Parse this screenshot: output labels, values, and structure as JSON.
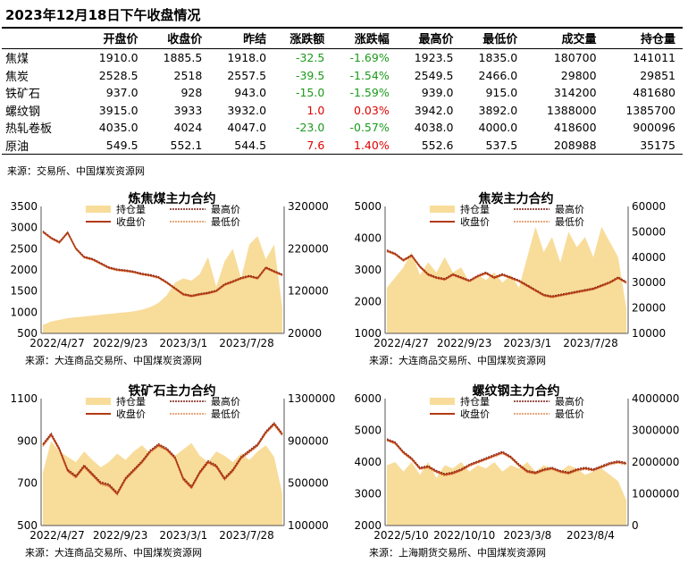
{
  "title": "2023年12月18日下午收盘情况",
  "table": {
    "headers": [
      "",
      "开盘价",
      "收盘价",
      "昨结",
      "涨跌额",
      "涨跌幅",
      "最高价",
      "最低价",
      "成交量",
      "持仓量"
    ],
    "rows": [
      [
        "焦煤",
        "1910.0",
        "1885.5",
        "1918.0",
        "-32.5",
        "-1.69%",
        "1923.5",
        "1835.0",
        "180700",
        "141011"
      ],
      [
        "焦炭",
        "2528.5",
        "2518",
        "2557.5",
        "-39.5",
        "-1.54%",
        "2549.5",
        "2466.0",
        "29800",
        "29851"
      ],
      [
        "铁矿石",
        "937.0",
        "928",
        "943.0",
        "-15.0",
        "-1.59%",
        "939.0",
        "915.0",
        "314200",
        "481680"
      ],
      [
        "螺纹钢",
        "3915.0",
        "3933",
        "3932.0",
        "1.0",
        "0.03%",
        "3942.0",
        "3892.0",
        "1388000",
        "1385700"
      ],
      [
        "热轧卷板",
        "4035.0",
        "4024",
        "4047.0",
        "-23.0",
        "-0.57%",
        "4038.0",
        "4000.0",
        "418600",
        "900096"
      ],
      [
        "原油",
        "549.5",
        "552.1",
        "544.5",
        "7.6",
        "1.40%",
        "552.6",
        "537.5",
        "208988",
        "35175"
      ]
    ]
  },
  "source": "来源：交易所、中国煤炭资源网",
  "colors": {
    "oi_fill": "#f8dc9a",
    "close": "#b33a12",
    "high": "#7a1a10",
    "low": "#e08a50",
    "up": "#e00000",
    "down": "#1a9a1a"
  },
  "chart_data": [
    {
      "type": "line",
      "title": "炼焦煤主力合约",
      "source": "来源：大连商品交易所、中国煤炭资源网",
      "x_ticks": [
        "2022/4/27",
        "2022/9/23",
        "2023/3/1",
        "2023/7/28"
      ],
      "left_ylim": [
        500,
        3500
      ],
      "left_ticks": [
        500,
        1000,
        1500,
        2000,
        2500,
        3000,
        3500
      ],
      "right_ylim": [
        20000,
        320000
      ],
      "right_ticks": [
        20000,
        120000,
        220000,
        320000
      ],
      "legend": [
        "持仓量",
        "收盘价",
        "最高价",
        "最低价"
      ],
      "close": [
        2900,
        2750,
        2650,
        2880,
        2500,
        2300,
        2250,
        2150,
        2050,
        2000,
        1980,
        1950,
        1900,
        1870,
        1820,
        1700,
        1560,
        1420,
        1380,
        1420,
        1450,
        1500,
        1650,
        1720,
        1800,
        1850,
        1800,
        2050,
        1960,
        1880
      ],
      "open_interest": [
        40000,
        48000,
        52000,
        56000,
        58000,
        60000,
        62000,
        64000,
        66000,
        68000,
        70000,
        72000,
        76000,
        82000,
        92000,
        110000,
        140000,
        150000,
        145000,
        160000,
        200000,
        130000,
        190000,
        220000,
        150000,
        230000,
        250000,
        195000,
        230000,
        80000
      ]
    },
    {
      "type": "line",
      "title": "焦炭主力合约",
      "source": "来源：大连商品交易所、中国煤炭资源网",
      "x_ticks": [
        "2022/4/27",
        "2022/9/23",
        "2023/3/1",
        "2023/7/28"
      ],
      "left_ylim": [
        1000,
        5000
      ],
      "left_ticks": [
        1000,
        2000,
        3000,
        4000,
        5000
      ],
      "right_ylim": [
        10000,
        60000
      ],
      "right_ticks": [
        10000,
        20000,
        30000,
        40000,
        50000,
        60000
      ],
      "legend": [
        "持仓量",
        "收盘价",
        "最高价",
        "最低价"
      ],
      "close": [
        3600,
        3500,
        3300,
        3450,
        3100,
        2850,
        2750,
        2700,
        2850,
        2750,
        2650,
        2800,
        2900,
        2750,
        2850,
        2750,
        2650,
        2500,
        2350,
        2200,
        2150,
        2200,
        2250,
        2300,
        2350,
        2400,
        2500,
        2600,
        2750,
        2600
      ],
      "open_interest": [
        28000,
        32000,
        36000,
        42000,
        33000,
        38000,
        34000,
        40000,
        34000,
        36000,
        30000,
        33000,
        31000,
        34000,
        30000,
        33000,
        28000,
        40000,
        52000,
        42000,
        48000,
        38000,
        50000,
        44000,
        48000,
        40000,
        52000,
        46000,
        40000,
        20000
      ]
    },
    {
      "type": "line",
      "title": "铁矿石主力合约",
      "source": "来源：大连商品交易所、中国煤炭资源网",
      "x_ticks": [
        "2022/4/27",
        "2022/9/23",
        "2023/3/1",
        "2023/7/28"
      ],
      "left_ylim": [
        500,
        1100
      ],
      "left_ticks": [
        500,
        700,
        900,
        1100
      ],
      "right_ylim": [
        100000,
        1300000
      ],
      "right_ticks": [
        100000,
        500000,
        900000,
        1300000
      ],
      "legend": [
        "持仓量",
        "收盘价",
        "最高价",
        "最低价"
      ],
      "close": [
        880,
        930,
        860,
        760,
        730,
        780,
        740,
        700,
        690,
        650,
        720,
        760,
        800,
        850,
        880,
        860,
        820,
        720,
        680,
        750,
        800,
        780,
        720,
        760,
        820,
        850,
        880,
        940,
        980,
        930
      ],
      "open_interest": [
        600000,
        900000,
        800000,
        750000,
        700000,
        800000,
        720000,
        650000,
        700000,
        780000,
        720000,
        800000,
        860000,
        780000,
        880000,
        820000,
        760000,
        820000,
        880000,
        760000,
        700000,
        800000,
        760000,
        700000,
        780000,
        720000,
        800000,
        860000,
        750000,
        400000
      ]
    },
    {
      "type": "line",
      "title": "螺纹钢主力合约",
      "source": "来源：上海期货交易所、中国煤炭资源网",
      "x_ticks": [
        "2022/5/10",
        "2022/10/10",
        "2023/3/8",
        "2023/8/4"
      ],
      "left_ylim": [
        2000,
        6000
      ],
      "left_ticks": [
        2000,
        3000,
        4000,
        5000,
        6000
      ],
      "right_ylim": [
        0,
        4000000
      ],
      "right_ticks": [
        0,
        1000000,
        2000000,
        3000000,
        4000000
      ],
      "legend": [
        "持仓量",
        "收盘价",
        "最高价",
        "最低价"
      ],
      "close": [
        4700,
        4600,
        4300,
        4100,
        3800,
        3850,
        3700,
        3600,
        3650,
        3750,
        3900,
        4000,
        4100,
        4200,
        4300,
        4150,
        3900,
        3700,
        3650,
        3750,
        3800,
        3700,
        3650,
        3750,
        3800,
        3750,
        3850,
        3950,
        4000,
        3950
      ],
      "open_interest": [
        1900000,
        2000000,
        1700000,
        2000000,
        1600000,
        2000000,
        1500000,
        1900000,
        1800000,
        2000000,
        1700000,
        1900000,
        1800000,
        2000000,
        1700000,
        1900000,
        1800000,
        2000000,
        1700000,
        1900000,
        1800000,
        1700000,
        1900000,
        1800000,
        1600000,
        1700000,
        1800000,
        1600000,
        1400000,
        800000
      ]
    }
  ]
}
